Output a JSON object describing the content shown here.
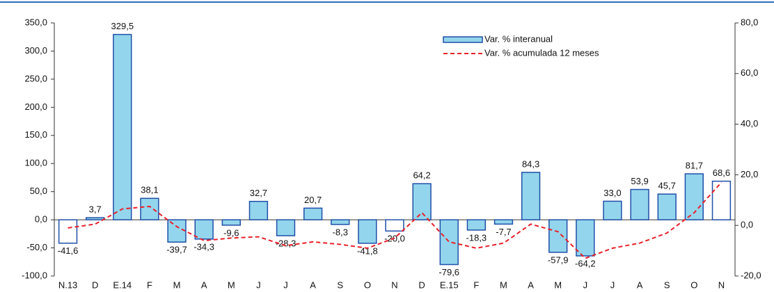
{
  "chart_data": {
    "type": "bar",
    "categories": [
      "N.13",
      "D",
      "E.14",
      "F",
      "M",
      "A",
      "M",
      "J",
      "J",
      "A",
      "S",
      "O",
      "N",
      "D",
      "E.15",
      "F",
      "M",
      "A",
      "M",
      "J",
      "J",
      "A",
      "S",
      "O",
      "N"
    ],
    "series": [
      {
        "name": "Var. % interanual",
        "type": "bar",
        "axis": "y",
        "color": "#93d5ec",
        "edge_color": "#1f4fa8",
        "colors": [
          "#ffffff",
          "#93d5ec",
          "#93d5ec",
          "#93d5ec",
          "#93d5ec",
          "#93d5ec",
          "#93d5ec",
          "#93d5ec",
          "#93d5ec",
          "#93d5ec",
          "#93d5ec",
          "#93d5ec",
          "#ffffff",
          "#93d5ec",
          "#93d5ec",
          "#93d5ec",
          "#93d5ec",
          "#93d5ec",
          "#93d5ec",
          "#93d5ec",
          "#93d5ec",
          "#93d5ec",
          "#93d5ec",
          "#93d5ec",
          "#ffffff"
        ],
        "values": [
          -41.6,
          3.7,
          329.5,
          38.1,
          -39.7,
          -34.3,
          -9.6,
          32.7,
          -28.3,
          20.7,
          -8.3,
          -41.8,
          -20.0,
          64.2,
          -79.6,
          -18.3,
          -7.7,
          84.3,
          -57.9,
          -64.2,
          33.0,
          53.9,
          45.7,
          81.7,
          68.6
        ],
        "value_labels": [
          "-41,6",
          "3,7",
          "329,5",
          "38,1",
          "-39,7",
          "-34,3",
          "-9,6",
          "32,7",
          "-28,3",
          "20,7",
          "-8,3",
          "-41,8",
          "-20,0",
          "64,2",
          "-79,6",
          "-18,3",
          "-7,7",
          "84,3",
          "-57,9",
          "-64,2",
          "33,0",
          "53,9",
          "45,7",
          "81,7",
          "68,6"
        ]
      },
      {
        "name": "Var. % acumulada 12 meses",
        "type": "line",
        "axis": "y2",
        "color": "#e8202a",
        "dashed": true,
        "values": [
          -1,
          0.5,
          6.5,
          7.5,
          -0.5,
          -6,
          -5,
          -4.5,
          -8,
          -6.5,
          -7.5,
          -9,
          -5,
          5,
          -6.5,
          -9,
          -7,
          0.5,
          -2.5,
          -13,
          -9,
          -7,
          -3,
          5,
          17
        ]
      }
    ],
    "ylim": [
      -100,
      350
    ],
    "yticks": [
      {
        "value": -100,
        "label": "-100,0"
      },
      {
        "value": -50,
        "label": "-50,0"
      },
      {
        "value": 0,
        "label": "0,0"
      },
      {
        "value": 50,
        "label": "50,0"
      },
      {
        "value": 100,
        "label": "100,0"
      },
      {
        "value": 150,
        "label": "150,0"
      },
      {
        "value": 200,
        "label": "200,0"
      },
      {
        "value": 250,
        "label": "250,0"
      },
      {
        "value": 300,
        "label": "300,0"
      },
      {
        "value": 350,
        "label": "350,0"
      }
    ],
    "y2lim": [
      -20,
      80
    ],
    "y2ticks": [
      {
        "value": -20,
        "label": "-20,0"
      },
      {
        "value": 0,
        "label": "0,0"
      },
      {
        "value": 20,
        "label": "20,0"
      },
      {
        "value": 40,
        "label": "40,0"
      },
      {
        "value": 60,
        "label": "60,0"
      },
      {
        "value": 80,
        "label": "80,0"
      }
    ],
    "legend": "upper right"
  }
}
